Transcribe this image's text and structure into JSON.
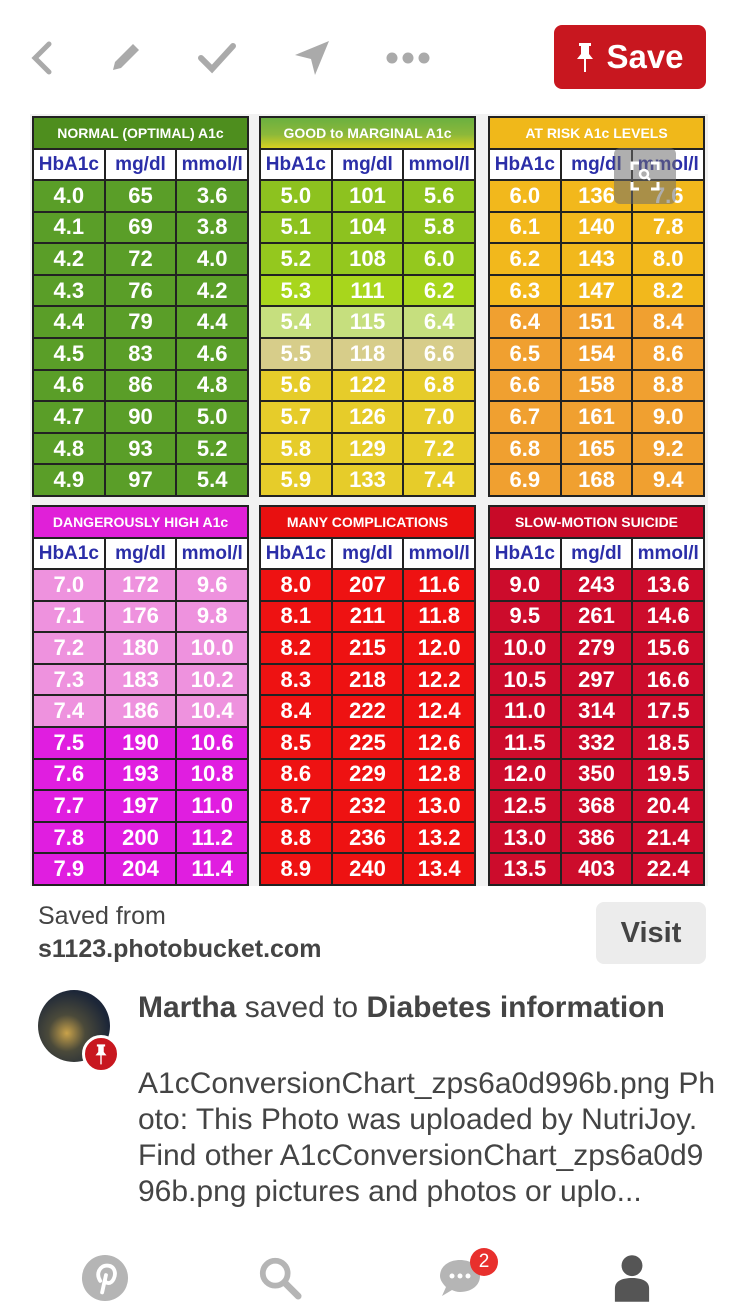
{
  "toolbar": {
    "back": "back-icon",
    "edit": "pencil-icon",
    "done": "check-icon",
    "send": "send-icon",
    "more": "more-icon",
    "save_label": "Save",
    "accent": "#c8171f"
  },
  "chart_image": {
    "tables": [
      {
        "title": "NORMAL (OPTIMAL) A1c",
        "title_color": "#4e8e1e",
        "headers": [
          "HbA1c",
          "mg/dl",
          "mmol/l"
        ],
        "rows": [
          [
            "4.0",
            "65",
            "3.6"
          ],
          [
            "4.1",
            "69",
            "3.8"
          ],
          [
            "4.2",
            "72",
            "4.0"
          ],
          [
            "4.3",
            "76",
            "4.2"
          ],
          [
            "4.4",
            "79",
            "4.4"
          ],
          [
            "4.5",
            "83",
            "4.6"
          ],
          [
            "4.6",
            "86",
            "4.8"
          ],
          [
            "4.7",
            "90",
            "5.0"
          ],
          [
            "4.8",
            "93",
            "5.2"
          ],
          [
            "4.9",
            "97",
            "5.4"
          ]
        ],
        "row_colors": [
          "#5a9e28",
          "#5a9e28",
          "#5a9e28",
          "#5a9e28",
          "#5a9e28",
          "#5a9e28",
          "#5a9e28",
          "#5a9e28",
          "#5a9e28",
          "#5a9e28"
        ]
      },
      {
        "title": "GOOD to MARGINAL A1c",
        "title_color": "#8cb83a",
        "headers": [
          "HbA1c",
          "mg/dl",
          "mmol/l"
        ],
        "rows": [
          [
            "5.0",
            "101",
            "5.6"
          ],
          [
            "5.1",
            "104",
            "5.8"
          ],
          [
            "5.2",
            "108",
            "6.0"
          ],
          [
            "5.3",
            "111",
            "6.2"
          ],
          [
            "5.4",
            "115",
            "6.4"
          ],
          [
            "5.5",
            "118",
            "6.6"
          ],
          [
            "5.6",
            "122",
            "6.8"
          ],
          [
            "5.7",
            "126",
            "7.0"
          ],
          [
            "5.8",
            "129",
            "7.2"
          ],
          [
            "5.9",
            "133",
            "7.4"
          ]
        ],
        "row_colors": [
          "#8dc21f",
          "#8dc21f",
          "#94c81e",
          "#a8d61c",
          "#c6df7e",
          "#d7cd8a",
          "#e6cc2a",
          "#e6cc2a",
          "#e6cc2a",
          "#e6cc2a"
        ]
      },
      {
        "title": "AT RISK A1c LEVELS",
        "title_color": "#f0b81a",
        "headers": [
          "HbA1c",
          "mg/dl",
          "mmol/l"
        ],
        "rows": [
          [
            "6.0",
            "136",
            "7.6"
          ],
          [
            "6.1",
            "140",
            "7.8"
          ],
          [
            "6.2",
            "143",
            "8.0"
          ],
          [
            "6.3",
            "147",
            "8.2"
          ],
          [
            "6.4",
            "151",
            "8.4"
          ],
          [
            "6.5",
            "154",
            "8.6"
          ],
          [
            "6.6",
            "158",
            "8.8"
          ],
          [
            "6.7",
            "161",
            "9.0"
          ],
          [
            "6.8",
            "165",
            "9.2"
          ],
          [
            "6.9",
            "168",
            "9.4"
          ]
        ],
        "row_colors": [
          "#f2b81c",
          "#f2b81c",
          "#f2b81c",
          "#f2b81c",
          "#f0a030",
          "#f0a030",
          "#f0a030",
          "#f0a030",
          "#f0a030",
          "#f0a030"
        ]
      },
      {
        "title": "DANGEROUSLY HIGH A1c",
        "title_color": "#e020d8",
        "headers": [
          "HbA1c",
          "mg/dl",
          "mmol/l"
        ],
        "rows": [
          [
            "7.0",
            "172",
            "9.6"
          ],
          [
            "7.1",
            "176",
            "9.8"
          ],
          [
            "7.2",
            "180",
            "10.0"
          ],
          [
            "7.3",
            "183",
            "10.2"
          ],
          [
            "7.4",
            "186",
            "10.4"
          ],
          [
            "7.5",
            "190",
            "10.6"
          ],
          [
            "7.6",
            "193",
            "10.8"
          ],
          [
            "7.7",
            "197",
            "11.0"
          ],
          [
            "7.8",
            "200",
            "11.2"
          ],
          [
            "7.9",
            "204",
            "11.4"
          ]
        ],
        "row_colors": [
          "#ee92de",
          "#ee92de",
          "#ee92de",
          "#ee92de",
          "#ee92de",
          "#e01ee0",
          "#e01ee0",
          "#e01ee0",
          "#e01ee0",
          "#e01ee0"
        ]
      },
      {
        "title": "MANY COMPLICATIONS",
        "title_color": "#e81010",
        "headers": [
          "HbA1c",
          "mg/dl",
          "mmol/l"
        ],
        "rows": [
          [
            "8.0",
            "207",
            "11.6"
          ],
          [
            "8.1",
            "211",
            "11.8"
          ],
          [
            "8.2",
            "215",
            "12.0"
          ],
          [
            "8.3",
            "218",
            "12.2"
          ],
          [
            "8.4",
            "222",
            "12.4"
          ],
          [
            "8.5",
            "225",
            "12.6"
          ],
          [
            "8.6",
            "229",
            "12.8"
          ],
          [
            "8.7",
            "232",
            "13.0"
          ],
          [
            "8.8",
            "236",
            "13.2"
          ],
          [
            "8.9",
            "240",
            "13.4"
          ]
        ],
        "row_colors": [
          "#ee1212",
          "#ee1212",
          "#ee1212",
          "#ee1212",
          "#ee1212",
          "#ee1212",
          "#ee1212",
          "#ee1212",
          "#ee1212",
          "#ee1212"
        ]
      },
      {
        "title": "SLOW-MOTION SUICIDE",
        "title_color": "#c80a28",
        "headers": [
          "HbA1c",
          "mg/dl",
          "mmol/l"
        ],
        "rows": [
          [
            "9.0",
            "243",
            "13.6"
          ],
          [
            "9.5",
            "261",
            "14.6"
          ],
          [
            "10.0",
            "279",
            "15.6"
          ],
          [
            "10.5",
            "297",
            "16.6"
          ],
          [
            "11.0",
            "314",
            "17.5"
          ],
          [
            "11.5",
            "332",
            "18.5"
          ],
          [
            "12.0",
            "350",
            "19.5"
          ],
          [
            "12.5",
            "368",
            "20.4"
          ],
          [
            "13.0",
            "386",
            "21.4"
          ],
          [
            "13.5",
            "403",
            "22.4"
          ]
        ],
        "row_colors": [
          "#cc0c2c",
          "#cc0c2c",
          "#cc0c2c",
          "#cc0c2c",
          "#cc0c2c",
          "#cc0c2c",
          "#cc0c2c",
          "#cc0c2c",
          "#cc0c2c",
          "#cc0c2c"
        ]
      }
    ]
  },
  "source": {
    "label": "Saved from",
    "domain": "s1123.photobucket.com",
    "visit_label": "Visit"
  },
  "saver": {
    "name": "Martha",
    "action": " saved to ",
    "board": "Diabetes information"
  },
  "description": "A1cConversionChart_zps6a0d996b.png Photo: This Photo was uploaded by NutriJoy. Find other A1cConversionChart_zps6a0d996b.png pictures and photos or uplo...",
  "nav": {
    "home": "pinterest-icon",
    "search": "search-icon",
    "messages": "chat-icon",
    "messages_badge": "2",
    "profile": "profile-icon"
  }
}
